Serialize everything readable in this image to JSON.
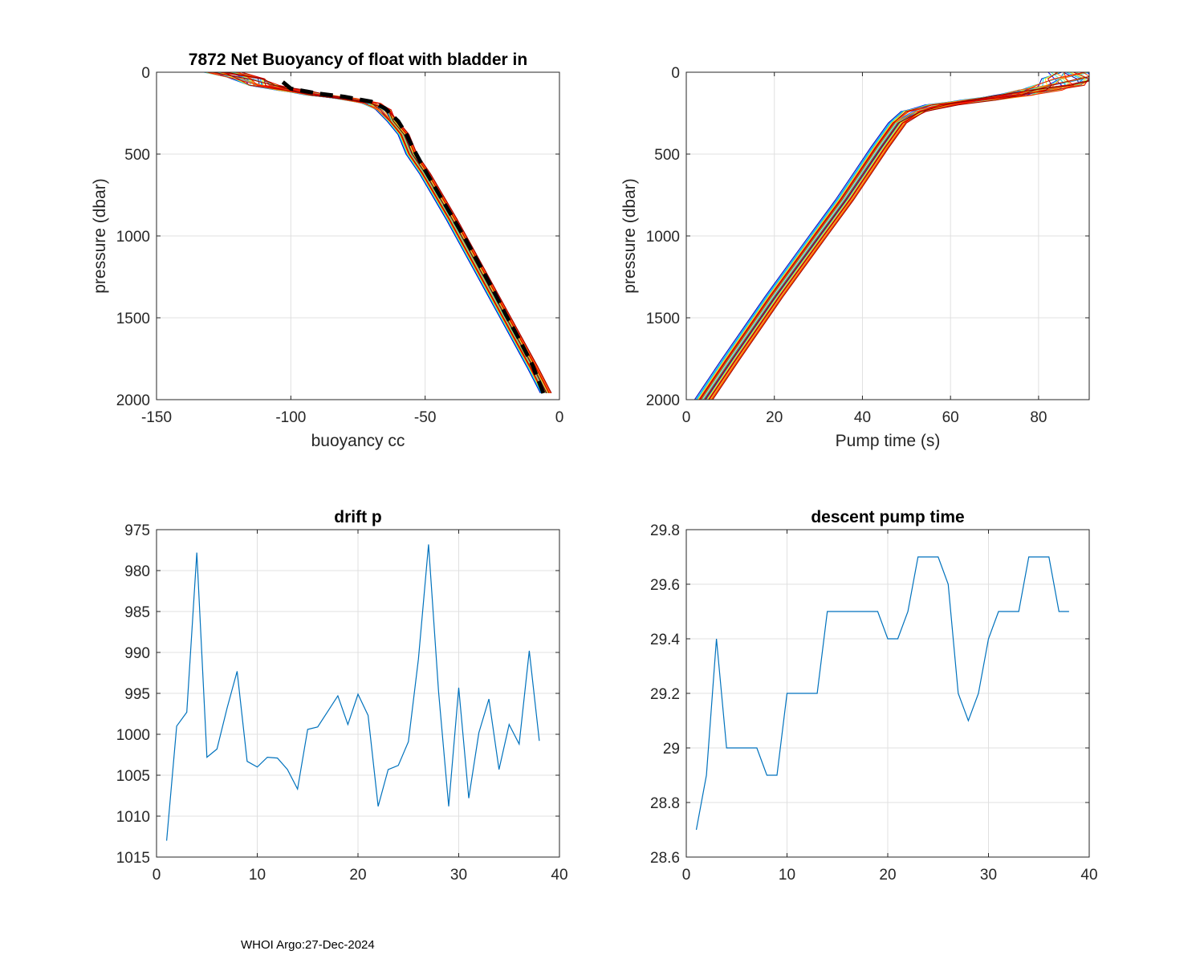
{
  "footer": "WHOI Argo:27-Dec-2024",
  "chart_data": [
    {
      "id": "buoyancy",
      "type": "line",
      "title": "7872 Net Buoyancy of float with bladder in",
      "xlabel": "buoyancy cc",
      "ylabel": "pressure (dbar)",
      "xlim": [
        -150,
        0
      ],
      "ylim": [
        0,
        2000
      ],
      "y_reversed": true,
      "grid": true,
      "xticks": [
        -150,
        -100,
        -50,
        0
      ],
      "yticks": [
        0,
        500,
        1000,
        1500,
        2000
      ],
      "profile_count": 38,
      "colormap": "jet",
      "base_profile": {
        "x": [
          -125,
          -115,
          -110,
          -100,
          -90,
          -80,
          -70,
          -65,
          -62,
          -58,
          -55,
          -50,
          -45,
          -40,
          -35,
          -30,
          -25,
          -20,
          -15,
          -10,
          -5
        ],
        "y": [
          0,
          40,
          80,
          110,
          140,
          160,
          190,
          230,
          300,
          380,
          500,
          620,
          760,
          900,
          1050,
          1200,
          1350,
          1500,
          1650,
          1800,
          1960
        ]
      },
      "mean_profile": {
        "style": "dashed-black-thick",
        "x": [
          -103,
          -100,
          -90,
          -80,
          -70,
          -65,
          -60,
          -57,
          -54,
          -50,
          -45,
          -40,
          -35,
          -30,
          -25,
          -20,
          -15,
          -10,
          -6
        ],
        "y": [
          60,
          100,
          130,
          150,
          180,
          220,
          300,
          380,
          480,
          600,
          740,
          880,
          1020,
          1170,
          1320,
          1480,
          1630,
          1790,
          1960
        ]
      }
    },
    {
      "id": "pump",
      "type": "line",
      "title": "",
      "xlabel": "Pump time (s)",
      "ylabel": "pressure (dbar)",
      "xlim": [
        0,
        91.5
      ],
      "ylim": [
        0,
        2000
      ],
      "y_reversed": true,
      "grid": true,
      "xticks": [
        0,
        20,
        40,
        60,
        80
      ],
      "yticks": [
        0,
        500,
        1000,
        1500,
        2000
      ],
      "profile_count": 38,
      "colormap": "jet",
      "base_profile": {
        "x": [
          4,
          10,
          20,
          30,
          36,
          40,
          44,
          48,
          52,
          58,
          66,
          74,
          80,
          85,
          88,
          90
        ],
        "y": [
          2000,
          1760,
          1370,
          1000,
          780,
          620,
          460,
          310,
          240,
          200,
          170,
          140,
          110,
          80,
          40,
          0
        ]
      }
    },
    {
      "id": "drift",
      "type": "line",
      "title": "drift p",
      "xlabel": "",
      "ylabel": "",
      "xlim": [
        0,
        40
      ],
      "ylim": [
        975,
        1015
      ],
      "y_reversed": true,
      "grid": true,
      "xticks": [
        0,
        10,
        20,
        30,
        40
      ],
      "yticks": [
        975,
        980,
        985,
        990,
        995,
        1000,
        1005,
        1010,
        1015
      ],
      "series": [
        {
          "name": "drift p",
          "color": "#0072bd",
          "x": [
            1,
            2,
            3,
            4,
            5,
            6,
            7,
            8,
            9,
            10,
            11,
            12,
            13,
            14,
            15,
            16,
            17,
            18,
            19,
            20,
            21,
            22,
            23,
            24,
            25,
            26,
            27,
            28,
            29,
            30,
            31,
            32,
            33,
            34,
            35,
            36,
            37,
            38
          ],
          "values": [
            1013,
            999,
            997.3,
            977.8,
            1002.8,
            1001.8,
            996.8,
            992.3,
            1003.3,
            1004,
            1002.8,
            1002.9,
            1004.3,
            1006.7,
            999.4,
            999.1,
            997.2,
            995.3,
            998.8,
            995.1,
            997.7,
            1008.8,
            1004.3,
            1003.8,
            1000.9,
            990.8,
            976.8,
            994.8,
            1008.8,
            994.3,
            1007.8,
            999.8,
            995.7,
            1004.3,
            998.8,
            1001.2,
            989.8,
            1000.8
          ]
        }
      ]
    },
    {
      "id": "descent",
      "type": "line",
      "title": "descent pump time",
      "xlabel": "",
      "ylabel": "",
      "xlim": [
        0,
        40
      ],
      "ylim": [
        28.6,
        29.8
      ],
      "y_reversed": false,
      "grid": true,
      "xticks": [
        0,
        10,
        20,
        30,
        40
      ],
      "yticks": [
        28.6,
        28.8,
        29,
        29.2,
        29.4,
        29.6,
        29.8
      ],
      "ytick_labels": [
        "28.6",
        "28.8",
        "29",
        "29.2",
        "29.4",
        "29.6",
        "29.8"
      ],
      "series": [
        {
          "name": "descent pump time",
          "color": "#0072bd",
          "x": [
            1,
            2,
            3,
            4,
            5,
            6,
            7,
            8,
            9,
            10,
            11,
            12,
            13,
            14,
            15,
            16,
            17,
            18,
            19,
            20,
            21,
            22,
            23,
            24,
            25,
            26,
            27,
            28,
            29,
            30,
            31,
            32,
            33,
            34,
            35,
            36,
            37,
            38
          ],
          "values": [
            28.7,
            28.9,
            29.4,
            29.0,
            29.0,
            29.0,
            29.0,
            28.9,
            28.9,
            29.2,
            29.2,
            29.2,
            29.2,
            29.5,
            29.5,
            29.5,
            29.5,
            29.5,
            29.5,
            29.4,
            29.4,
            29.5,
            29.7,
            29.7,
            29.7,
            29.6,
            29.2,
            29.1,
            29.2,
            29.4,
            29.5,
            29.5,
            29.5,
            29.7,
            29.7,
            29.7,
            29.5,
            29.5
          ]
        }
      ]
    }
  ]
}
